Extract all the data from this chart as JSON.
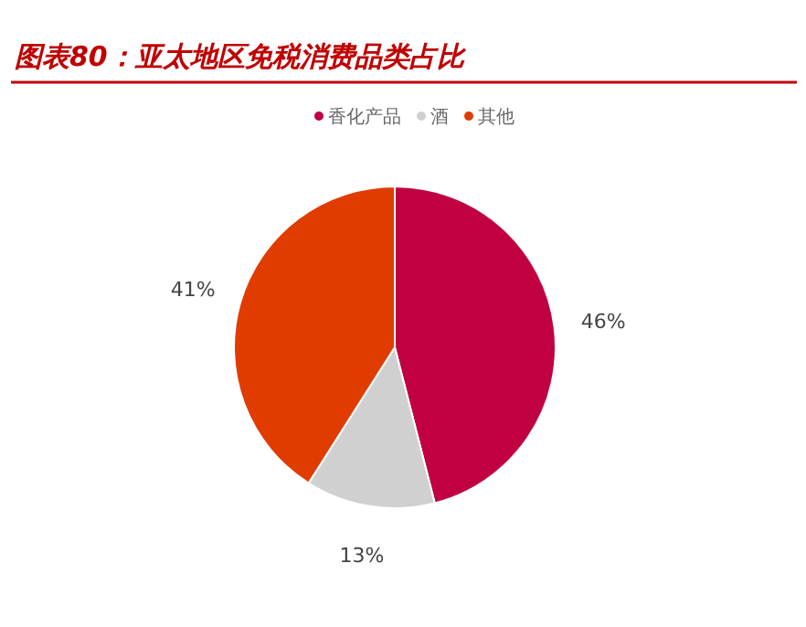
{
  "chart_data": {
    "type": "pie",
    "title": "图表80：亚太地区免税消费品类占比",
    "categories": [
      "香化产品",
      "酒",
      "其他"
    ],
    "values": [
      46,
      13,
      41
    ],
    "colors": [
      "#c00040",
      "#d0d0d0",
      "#e03c00"
    ],
    "value_labels": [
      "46%",
      "13%",
      "41%"
    ],
    "legend": "top"
  }
}
